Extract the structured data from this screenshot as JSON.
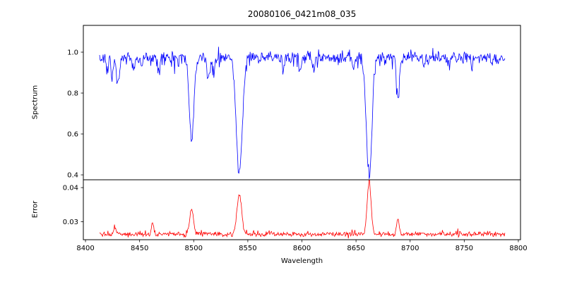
{
  "figure": {
    "title": "20080106_0421m08_035",
    "xlabel": "Wavelength",
    "background_color": "#ffffff",
    "axes_color": "#000000"
  },
  "chart_data": [
    {
      "type": "line",
      "name": "spectrum",
      "ylabel": "Spectrum",
      "color": "#0000ff",
      "legend": "none",
      "grid": false,
      "x_range": [
        8413,
        8788
      ],
      "xlim": [
        8398,
        8802
      ],
      "ylim": [
        0.376,
        1.131
      ],
      "xticks": [
        "8400",
        "8450",
        "8500",
        "8550",
        "8600",
        "8650",
        "8700",
        "8750",
        "8800"
      ],
      "yticks": [
        "0.4",
        "0.6",
        "0.8",
        "1.0"
      ],
      "continuum_level": 0.975,
      "noise_sigma": 0.016,
      "sample_step": 0.55,
      "absorption_features": [
        {
          "center": 8420.0,
          "min_flux": 0.9,
          "sigma": 0.9
        },
        {
          "center": 8424.5,
          "min_flux": 0.87,
          "sigma": 1.0
        },
        {
          "center": 8430.0,
          "min_flux": 0.85,
          "sigma": 1.4
        },
        {
          "center": 8444.0,
          "min_flux": 0.92,
          "sigma": 0.9
        },
        {
          "center": 8452.0,
          "min_flux": 0.91,
          "sigma": 0.9
        },
        {
          "center": 8468.0,
          "min_flux": 0.9,
          "sigma": 1.0
        },
        {
          "center": 8498.0,
          "min_flux": 0.58,
          "sigma": 2.2
        },
        {
          "center": 8514.0,
          "min_flux": 0.87,
          "sigma": 1.2
        },
        {
          "center": 8518.5,
          "min_flux": 0.89,
          "sigma": 1.0
        },
        {
          "center": 8542.1,
          "min_flux": 0.41,
          "sigma": 2.8
        },
        {
          "center": 8583.0,
          "min_flux": 0.91,
          "sigma": 1.0
        },
        {
          "center": 8598.0,
          "min_flux": 0.92,
          "sigma": 0.9
        },
        {
          "center": 8611.0,
          "min_flux": 0.91,
          "sigma": 0.9
        },
        {
          "center": 8648.0,
          "min_flux": 0.92,
          "sigma": 0.9
        },
        {
          "center": 8662.1,
          "min_flux": 0.4,
          "sigma": 2.6
        },
        {
          "center": 8688.6,
          "min_flux": 0.78,
          "sigma": 1.4
        },
        {
          "center": 8713.0,
          "min_flux": 0.92,
          "sigma": 0.9
        },
        {
          "center": 8736.0,
          "min_flux": 0.92,
          "sigma": 0.9
        },
        {
          "center": 8757.0,
          "min_flux": 0.91,
          "sigma": 0.9
        },
        {
          "center": 8776.0,
          "min_flux": 0.93,
          "sigma": 0.8
        }
      ]
    },
    {
      "type": "line",
      "name": "error",
      "ylabel": "Error",
      "color": "#ff0000",
      "legend": "none",
      "grid": false,
      "x_range": [
        8413,
        8788
      ],
      "xlim": [
        8398,
        8802
      ],
      "ylim": [
        0.0247,
        0.0423
      ],
      "yticks": [
        "0.03",
        "0.04"
      ],
      "baseline_level": 0.0263,
      "noise_sigma": 0.00035,
      "sample_step": 0.55,
      "error_peaks": [
        {
          "center": 8427.0,
          "peak_value": 0.0285,
          "sigma": 1.2
        },
        {
          "center": 8462.0,
          "peak_value": 0.03,
          "sigma": 1.0
        },
        {
          "center": 8498.0,
          "peak_value": 0.0335,
          "sigma": 1.8
        },
        {
          "center": 8542.1,
          "peak_value": 0.038,
          "sigma": 2.2
        },
        {
          "center": 8662.1,
          "peak_value": 0.042,
          "sigma": 1.8
        },
        {
          "center": 8688.6,
          "peak_value": 0.0305,
          "sigma": 1.2
        }
      ]
    }
  ]
}
